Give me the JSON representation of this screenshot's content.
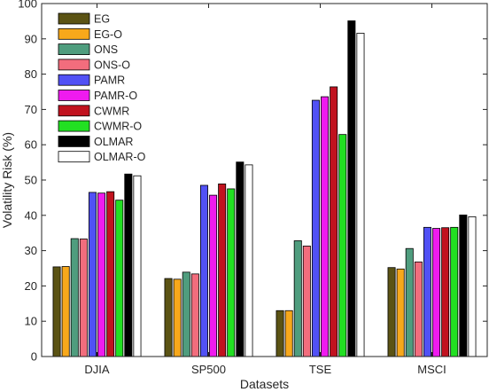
{
  "chart_data": {
    "type": "bar",
    "title": "",
    "xlabel": "Datasets",
    "ylabel": "Volatility Risk (%)",
    "ylim": [
      0,
      100
    ],
    "yticks": [
      0,
      10,
      20,
      30,
      40,
      50,
      60,
      70,
      80,
      90,
      100
    ],
    "grid": false,
    "legend_position": "top-left",
    "categories": [
      "DJIA",
      "SP500",
      "TSE",
      "MSCI"
    ],
    "series": [
      {
        "name": "EG",
        "color": "#5b5314",
        "values": [
          25.4,
          22.1,
          13.0,
          25.2
        ]
      },
      {
        "name": "EG-O",
        "color": "#f7a81b",
        "values": [
          25.5,
          21.9,
          13.0,
          24.8
        ]
      },
      {
        "name": "ONS",
        "color": "#4f9d7e",
        "values": [
          33.4,
          23.9,
          32.8,
          30.6
        ]
      },
      {
        "name": "ONS-O",
        "color": "#f26d7d",
        "values": [
          33.3,
          23.4,
          31.3,
          26.8
        ]
      },
      {
        "name": "PAMR",
        "color": "#5151f5",
        "values": [
          46.5,
          48.5,
          72.6,
          36.6
        ]
      },
      {
        "name": "PAMR-O",
        "color": "#ef1bef",
        "values": [
          46.3,
          45.7,
          73.6,
          36.3
        ]
      },
      {
        "name": "CWMR",
        "color": "#c1121f",
        "values": [
          46.7,
          48.9,
          76.4,
          36.5
        ]
      },
      {
        "name": "CWMR-O",
        "color": "#22e022",
        "values": [
          44.3,
          47.5,
          62.9,
          36.6
        ]
      },
      {
        "name": "OLMAR",
        "color": "#000000",
        "values": [
          51.7,
          55.1,
          95.1,
          40.1
        ]
      },
      {
        "name": "OLMAR-O",
        "color": "#ffffff",
        "values": [
          51.2,
          54.3,
          91.6,
          39.6
        ]
      }
    ]
  }
}
